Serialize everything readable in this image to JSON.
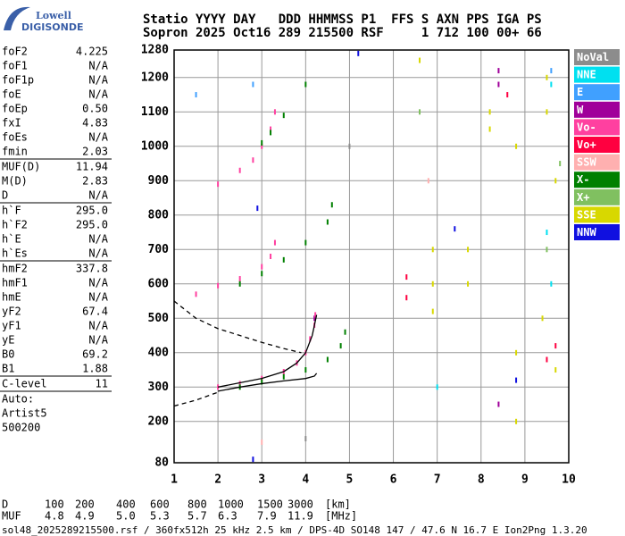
{
  "logo": {
    "line1": "Lowell",
    "line2": "DIGISONDE"
  },
  "header": {
    "line1": "Statio YYYY DAY   DDD HHMMSS P1  FFS S AXN PPS IGA PS",
    "line2": "Sopron 2025 Oct16 289 215500 RSF     1 712 100 00+ 66"
  },
  "left_panel": {
    "groups": [
      {
        "rows": [
          [
            "foF2",
            "4.225"
          ],
          [
            "foF1",
            "N/A"
          ],
          [
            "foF1p",
            "N/A"
          ],
          [
            "foE",
            "N/A"
          ],
          [
            "foEp",
            "0.50"
          ],
          [
            "fxI",
            "4.83"
          ],
          [
            "foEs",
            "N/A"
          ],
          [
            "fmin",
            "2.03"
          ]
        ]
      },
      {
        "rows": [
          [
            "MUF(D)",
            "11.94"
          ],
          [
            "M(D)",
            "2.83"
          ],
          [
            "D",
            "N/A"
          ]
        ]
      },
      {
        "rows": [
          [
            "h`F",
            "295.0"
          ],
          [
            "h`F2",
            "295.0"
          ],
          [
            "h`E",
            "N/A"
          ],
          [
            "h`Es",
            "N/A"
          ]
        ]
      },
      {
        "rows": [
          [
            "hmF2",
            "337.8"
          ],
          [
            "hmF1",
            "N/A"
          ],
          [
            "hmE",
            "N/A"
          ],
          [
            "yF2",
            "67.4"
          ],
          [
            "yF1",
            "N/A"
          ],
          [
            "yE",
            "N/A"
          ],
          [
            "B0",
            "69.2"
          ],
          [
            "B1",
            "1.88"
          ]
        ]
      },
      {
        "rows": [
          [
            "C-level",
            "11"
          ]
        ]
      },
      {
        "rows": [
          [
            "Auto:",
            ""
          ],
          [
            "Artist5",
            ""
          ],
          [
            "500200",
            ""
          ]
        ]
      }
    ]
  },
  "chart_data": {
    "type": "scatter",
    "xlim": [
      1,
      10
    ],
    "xticks": [
      1,
      2,
      3,
      4,
      5,
      6,
      7,
      8,
      9,
      10
    ],
    "ylim": [
      80,
      1280
    ],
    "yticks": [
      80,
      200,
      300,
      400,
      500,
      600,
      700,
      800,
      900,
      1000,
      1100,
      1200,
      1280
    ],
    "grid": true,
    "series": [
      {
        "name": "NoVal",
        "color": "#8c8c8c",
        "x": [
          4.0,
          5.0
        ],
        "y": [
          150,
          1000
        ]
      },
      {
        "name": "NNE",
        "color": "#00e0f0",
        "x": [
          9.6,
          9.5,
          7.0,
          9.6
        ],
        "y": [
          600,
          750,
          300,
          1180
        ]
      },
      {
        "name": "E",
        "color": "#40a0ff",
        "x": [
          2.8,
          9.6,
          1.5
        ],
        "y": [
          1180,
          1220,
          1150
        ]
      },
      {
        "name": "W",
        "color": "#a0009a",
        "x": [
          8.4,
          8.4,
          8.4,
          4.2
        ],
        "y": [
          1220,
          1180,
          250,
          500
        ]
      },
      {
        "name": "Vo-",
        "color": "#ff40a0",
        "x": [
          2.0,
          2.5,
          3.0,
          3.5,
          3.8,
          4.0,
          4.1,
          4.2,
          4.22,
          1.5,
          2.0,
          2.5,
          3.0,
          3.2,
          3.3,
          2.0,
          2.5,
          2.8,
          3.0,
          3.2,
          3.3
        ],
        "y": [
          300,
          310,
          325,
          345,
          370,
          400,
          440,
          480,
          510,
          570,
          595,
          615,
          650,
          680,
          720,
          890,
          930,
          960,
          1000,
          1050,
          1100
        ]
      },
      {
        "name": "Vo+",
        "color": "#ff0040",
        "x": [
          6.3,
          6.3,
          8.6,
          9.5,
          9.7
        ],
        "y": [
          620,
          560,
          1150,
          380,
          420
        ]
      },
      {
        "name": "SSW",
        "color": "#ffb0b0",
        "x": [
          3.0,
          6.8
        ],
        "y": [
          140,
          900
        ]
      },
      {
        "name": "X-",
        "color": "#008000",
        "x": [
          2.5,
          3.0,
          3.5,
          4.0,
          4.5,
          4.8,
          4.9,
          2.5,
          3.0,
          3.5,
          4.0,
          4.5,
          4.6,
          3.0,
          3.2,
          3.5,
          4.0
        ],
        "y": [
          300,
          315,
          330,
          350,
          380,
          420,
          460,
          600,
          630,
          670,
          720,
          780,
          830,
          1010,
          1040,
          1090,
          1180
        ]
      },
      {
        "name": "X+",
        "color": "#80c060",
        "x": [
          6.6,
          9.8,
          9.5
        ],
        "y": [
          1100,
          950,
          700
        ]
      },
      {
        "name": "SSE",
        "color": "#d8d800",
        "x": [
          6.9,
          6.9,
          6.9,
          7.7,
          7.7,
          8.2,
          8.2,
          8.8,
          8.8,
          9.5,
          9.5,
          9.7,
          6.6,
          9.7,
          9.4,
          8.8
        ],
        "y": [
          520,
          600,
          700,
          600,
          700,
          1050,
          1100,
          1000,
          400,
          1200,
          1100,
          900,
          1250,
          350,
          500,
          200
        ]
      },
      {
        "name": "NNW",
        "color": "#1010e0",
        "x": [
          2.8,
          7.4,
          2.9,
          8.8,
          5.2
        ],
        "y": [
          90,
          760,
          820,
          320,
          1270
        ]
      }
    ],
    "model_curves": [
      {
        "color": "#000000",
        "dashed": true,
        "x": [
          1,
          1.5,
          2,
          2.5,
          3,
          3.5,
          3.9
        ],
        "y": [
          550,
          500,
          470,
          450,
          430,
          412,
          400
        ]
      },
      {
        "color": "#000000",
        "dashed": true,
        "x": [
          1,
          1.5,
          2
        ],
        "y": [
          245,
          262,
          285
        ]
      },
      {
        "color": "#000000",
        "dashed": false,
        "x": [
          2,
          2.5,
          3,
          3.5,
          4,
          4.2,
          4.25
        ],
        "y": [
          288,
          300,
          310,
          318,
          325,
          332,
          340
        ]
      },
      {
        "color": "#000000",
        "dashed": false,
        "x": [
          2,
          3,
          3.5,
          3.8,
          4,
          4.15,
          4.25
        ],
        "y": [
          300,
          325,
          345,
          370,
          400,
          450,
          510
        ]
      }
    ]
  },
  "bottom": {
    "rows": [
      [
        "D",
        "100",
        "200",
        "400",
        "600",
        "800",
        "1000",
        "1500",
        "3000",
        "[km]"
      ],
      [
        "MUF",
        "4.8",
        "4.9",
        "5.0",
        "5.3",
        "5.7",
        "6.3",
        "7.9",
        "11.9",
        "[MHz]"
      ]
    ],
    "footer": "sol48_2025289215500.rsf / 360fx512h 25 kHz 2.5 km / DPS-4D SO148 147 / 47.6 N 16.7 E Ion2Png 1.3.20"
  }
}
